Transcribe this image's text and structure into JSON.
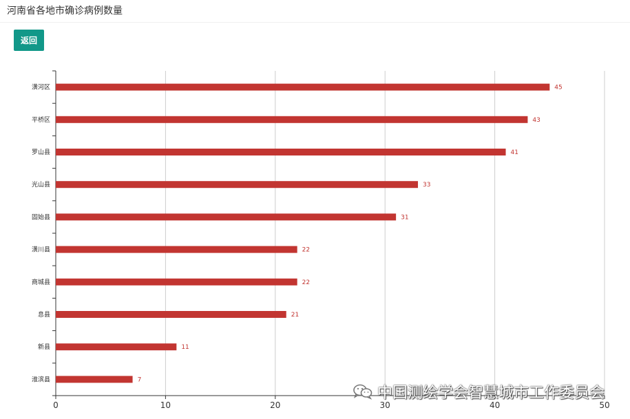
{
  "header": {
    "title": "河南省各地市确诊病例数量"
  },
  "toolbar": {
    "back_label": "返回"
  },
  "watermark": {
    "text": "中国测绘学会智慧城市工作委员会",
    "icon": "wechat-icon"
  },
  "colors": {
    "bar": "#c23531",
    "primary_button": "#129889",
    "grid": "#cccccc",
    "axis": "#333333"
  },
  "chart_data": {
    "type": "bar",
    "orientation": "horizontal",
    "categories": [
      "潢河区",
      "平桥区",
      "罗山县",
      "光山县",
      "固始县",
      "潢川县",
      "商城县",
      "息县",
      "新县",
      "淮滨县"
    ],
    "values": [
      45,
      43,
      41,
      33,
      31,
      22,
      22,
      21,
      11,
      7
    ],
    "xlim": [
      0,
      50
    ],
    "xticks": [
      0,
      10,
      20,
      30,
      40,
      50
    ],
    "grid": true,
    "data_labels": true
  }
}
